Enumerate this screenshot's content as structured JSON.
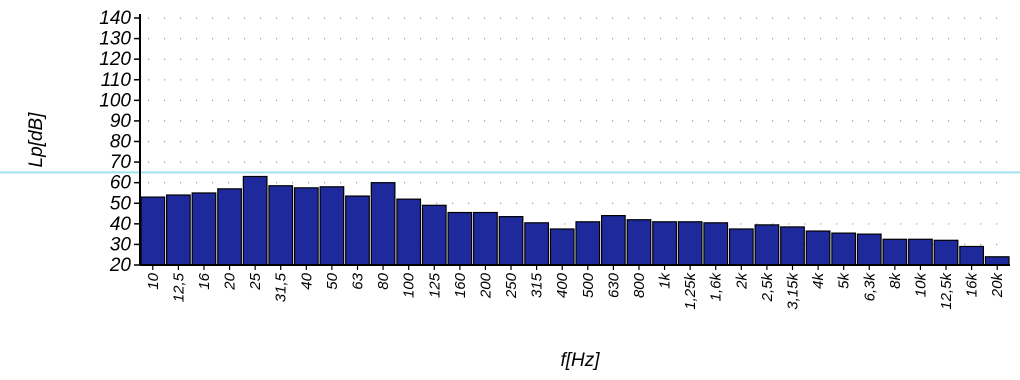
{
  "chart_data": {
    "type": "bar",
    "title": "",
    "xlabel": "f[Hz]",
    "ylabel": "Lp[dB]",
    "ylim": [
      20,
      140
    ],
    "yticks": [
      20,
      30,
      40,
      50,
      60,
      70,
      80,
      90,
      100,
      110,
      120,
      130,
      140
    ],
    "grid": true,
    "reference_line": {
      "value": 65,
      "color": "#9fe3ef"
    },
    "bar_color": "#1e2a9c",
    "categories": [
      "10",
      "12,5",
      "16",
      "20",
      "25",
      "31,5",
      "40",
      "50",
      "63",
      "80",
      "100",
      "125",
      "160",
      "200",
      "250",
      "315",
      "400",
      "500",
      "630",
      "800",
      "1k",
      "1,25k",
      "1,6k",
      "2k",
      "2,5k",
      "3,15k",
      "4k",
      "5k",
      "6,3k",
      "8k",
      "10k",
      "12,5k",
      "16k",
      "20k"
    ],
    "values": [
      53,
      54,
      55,
      57,
      63,
      58.5,
      57.5,
      58,
      53.5,
      60,
      52,
      49,
      45.5,
      45.5,
      43.5,
      40.5,
      37.5,
      41,
      44,
      42,
      41,
      41,
      40.5,
      37.5,
      39.5,
      38.5,
      36.5,
      35.5,
      35,
      32.5,
      32.5,
      32,
      29,
      24
    ]
  }
}
